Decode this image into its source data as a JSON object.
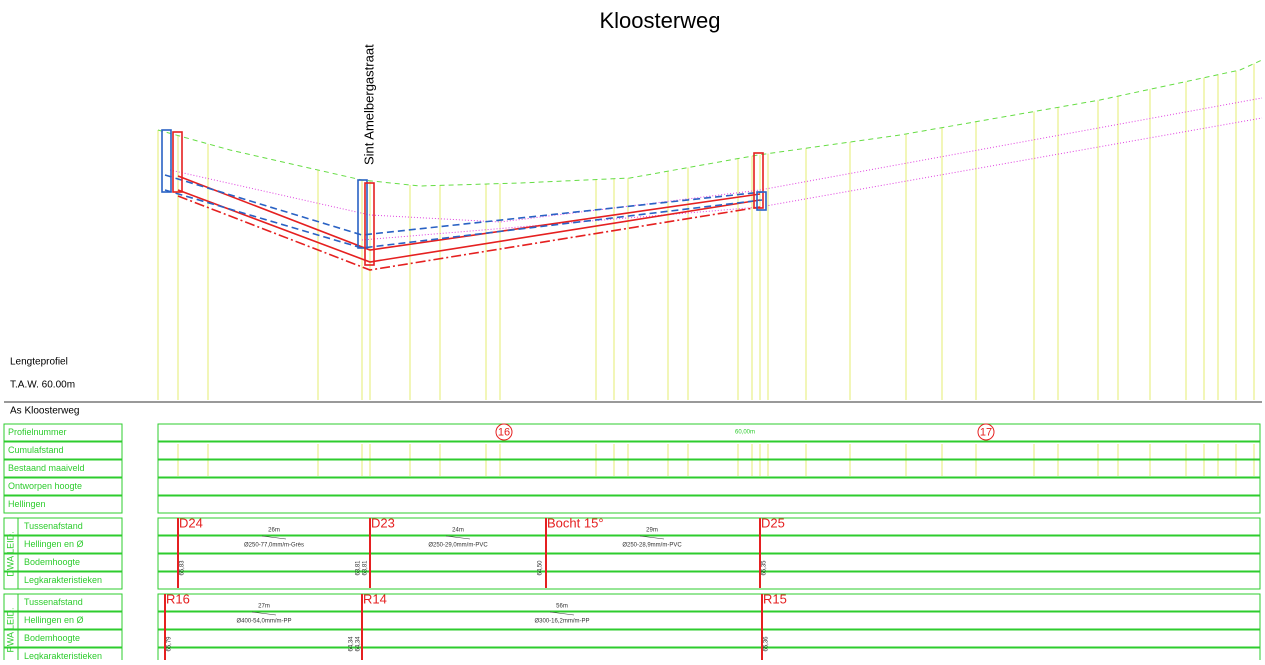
{
  "title": "Kloosterweg",
  "street_label": "Sint Amelbergastraat",
  "legend": {
    "profile_label": "Lengteprofiel",
    "reference_level": "T.A.W. 60.00m"
  },
  "axis_label": "As Kloosterweg",
  "rows": [
    "Profielnummer",
    "Cumulafstand",
    "Bestaand maaiveld",
    "Ontworpen hoogte",
    "Hellingen"
  ],
  "profile_numbers": [
    "16",
    "17"
  ],
  "profile_spacing": "60,00m",
  "dwa": {
    "group": "DWA LEID.",
    "rows": [
      "Tussenafstand",
      "Hellingen en Ø",
      "Bodemhoogte",
      "Legkarakteristieken"
    ],
    "nodes": [
      "D24",
      "D23",
      "Bocht 15°",
      "D25"
    ],
    "distances": [
      "26m",
      "24m",
      "29m"
    ],
    "pipes": [
      "Ø250-77,0mm/m-Grès",
      "Ø250-29,0mm/m-PVC",
      "Ø250-28,9mm/m-PVC"
    ],
    "levels": [
      "65,83",
      "63,81",
      "63,81",
      "64,50",
      "65,35"
    ]
  },
  "rwa": {
    "group": "RWA LEID.",
    "rows": [
      "Tussenafstand",
      "Hellingen en Ø",
      "Bodemhoogte",
      "Legkarakteristieken"
    ],
    "nodes": [
      "R16",
      "R14",
      "R15"
    ],
    "distances": [
      "27m",
      "56m"
    ],
    "pipes": [
      "Ø400-54,0mm/m-PP",
      "Ø300-16,2mm/m-PP"
    ],
    "levels": [
      "65,79",
      "64,34",
      "64,34",
      "65,36"
    ]
  }
}
